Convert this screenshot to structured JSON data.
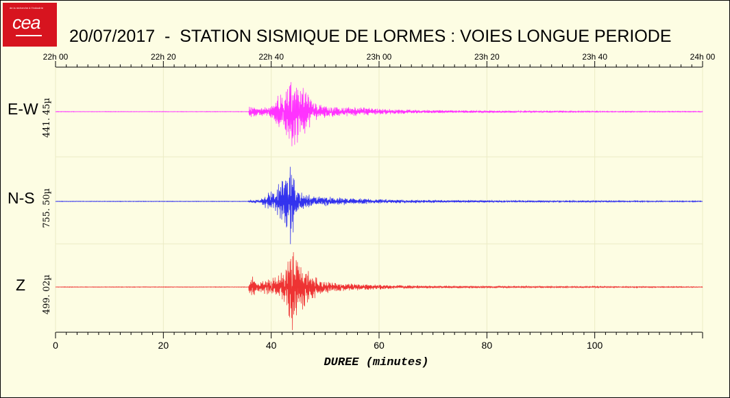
{
  "logo": {
    "text": "cea",
    "tagline": "de la recherche à l'industrie"
  },
  "title": "20/07/2017  -  STATION SISMIQUE DE LORMES : VOIES LONGUE PERIODE",
  "chart_data": [
    {
      "type": "line",
      "title": "20/07/2017  -  STATION SISMIQUE DE LORMES : VOIES LONGUE PERIODE",
      "xlabel": "DUREE (minutes)",
      "xlim": [
        0,
        120
      ],
      "x_ticks": [
        0,
        20,
        40,
        60,
        80,
        100
      ],
      "top_axis_labels": [
        "22h 00",
        "22h 20",
        "22h 40",
        "23h 00",
        "23h 20",
        "23h 40",
        "24h 00"
      ],
      "top_axis_values": [
        0,
        20,
        40,
        60,
        80,
        100,
        120
      ],
      "grid": true,
      "series": [
        {
          "name": "E-W",
          "amplitude_label": "441. 45µ",
          "color": "#ff33ff",
          "envelope": {
            "x": [
              0,
              35.8,
              36,
              37.5,
              39.5,
              41,
              42.5,
              43.5,
              44.2,
              45,
              46,
              47.5,
              50,
              53,
              55,
              58,
              62,
              68,
              80,
              95,
              120
            ],
            "amp": [
              0.006,
              0.006,
              0.16,
              0.1,
              0.13,
              0.32,
              0.55,
              0.8,
              1.0,
              0.8,
              0.55,
              0.3,
              0.14,
              0.11,
              0.13,
              0.09,
              0.06,
              0.04,
              0.025,
              0.015,
              0.01
            ]
          }
        },
        {
          "name": "N-S",
          "amplitude_label": "755. 50µ",
          "color": "#3333ee",
          "envelope": {
            "x": [
              0,
              35.8,
              36,
              38,
              39.8,
              40.5,
              42,
              43,
              43.5,
              44.2,
              45,
              46,
              48,
              51,
              55,
              60,
              70,
              85,
              120
            ],
            "amp": [
              0.006,
              0.006,
              0.05,
              0.04,
              0.25,
              0.2,
              0.6,
              0.85,
              1.0,
              0.6,
              0.3,
              0.2,
              0.12,
              0.1,
              0.07,
              0.05,
              0.03,
              0.02,
              0.01
            ]
          }
        },
        {
          "name": "Z",
          "amplitude_label": "499. 02µ",
          "color": "#ee3333",
          "envelope": {
            "x": [
              0,
              35.8,
              36,
              37.5,
              39.5,
              41.5,
              43,
              44,
              44.5,
              45.3,
              46.5,
              48,
              50,
              53,
              57,
              62,
              70,
              85,
              120
            ],
            "amp": [
              0.006,
              0.006,
              0.3,
              0.12,
              0.18,
              0.28,
              0.55,
              1.0,
              0.85,
              0.6,
              0.4,
              0.25,
              0.15,
              0.1,
              0.07,
              0.05,
              0.03,
              0.02,
              0.01
            ]
          }
        }
      ]
    }
  ]
}
